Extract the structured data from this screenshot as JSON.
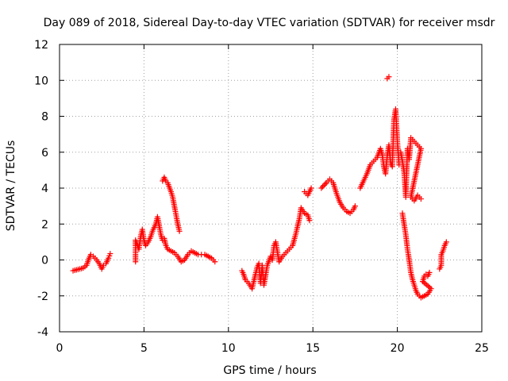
{
  "chart_data": {
    "type": "scatter",
    "title": "Day 089 of 2018, Sidereal Day-to-day VTEC variation (SDTVAR) for receiver msdr",
    "xlabel": "GPS time / hours",
    "ylabel": "SDTVAR / TECUs",
    "xlim": [
      0,
      25
    ],
    "ylim": [
      -4,
      12
    ],
    "xticks": [
      "0",
      "5",
      "10",
      "15",
      "20",
      "25"
    ],
    "yticks": [
      "-4",
      "-2",
      "0",
      "2",
      "4",
      "6",
      "8",
      "10",
      "12"
    ],
    "grid": true,
    "marker": "plus",
    "color": "#ff0000",
    "series": [
      {
        "name": "SDTVAR",
        "segments": [
          [
            [
              0.8,
              -0.6
            ],
            [
              1.0,
              -0.55
            ],
            [
              1.2,
              -0.5
            ],
            [
              1.4,
              -0.45
            ],
            [
              1.6,
              -0.3
            ],
            [
              1.75,
              0.1
            ],
            [
              1.85,
              0.3
            ],
            [
              2.0,
              0.2
            ],
            [
              2.2,
              0.0
            ],
            [
              2.35,
              -0.2
            ],
            [
              2.5,
              -0.5
            ],
            [
              2.6,
              -0.3
            ],
            [
              2.75,
              -0.2
            ],
            [
              2.9,
              0.1
            ],
            [
              3.0,
              0.35
            ]
          ],
          [
            [
              4.5,
              -0.1
            ],
            [
              4.5,
              0.1
            ],
            [
              4.5,
              1.1
            ],
            [
              4.7,
              0.6
            ],
            [
              4.8,
              1.3
            ],
            [
              4.9,
              1.7
            ],
            [
              5.0,
              1.1
            ],
            [
              5.1,
              0.8
            ],
            [
              5.25,
              1.0
            ],
            [
              5.4,
              1.3
            ],
            [
              5.5,
              1.6
            ],
            [
              5.6,
              1.8
            ],
            [
              5.7,
              2.0
            ],
            [
              5.8,
              2.4
            ],
            [
              5.9,
              1.9
            ],
            [
              6.0,
              1.4
            ],
            [
              6.1,
              1.1
            ],
            [
              6.2,
              1.2
            ],
            [
              6.3,
              0.8
            ],
            [
              6.4,
              0.6
            ],
            [
              6.6,
              0.5
            ],
            [
              6.8,
              0.4
            ],
            [
              7.0,
              0.2
            ],
            [
              7.2,
              -0.1
            ],
            [
              7.4,
              0.0
            ],
            [
              7.6,
              0.3
            ],
            [
              7.8,
              0.5
            ],
            [
              8.0,
              0.4
            ],
            [
              8.2,
              0.3
            ],
            [
              8.4,
              0.3
            ],
            [
              8.6,
              0.3
            ],
            [
              8.8,
              0.2
            ],
            [
              9.0,
              0.1
            ],
            [
              9.2,
              -0.1
            ]
          ],
          [
            [
              6.1,
              4.4
            ],
            [
              6.2,
              4.6
            ],
            [
              6.3,
              4.4
            ],
            [
              6.4,
              4.3
            ],
            [
              6.6,
              3.8
            ],
            [
              6.7,
              3.5
            ],
            [
              6.8,
              3.0
            ],
            [
              6.9,
              2.5
            ],
            [
              7.0,
              2.0
            ],
            [
              7.1,
              1.6
            ]
          ],
          [
            [
              10.8,
              -0.6
            ],
            [
              10.9,
              -0.8
            ],
            [
              11.0,
              -1.1
            ],
            [
              11.2,
              -1.3
            ],
            [
              11.4,
              -1.6
            ],
            [
              11.5,
              -1.2
            ],
            [
              11.7,
              -0.4
            ],
            [
              11.8,
              -0.2
            ],
            [
              11.9,
              -1.3
            ],
            [
              12.0,
              -0.3
            ],
            [
              12.1,
              -1.4
            ],
            [
              12.3,
              -0.3
            ],
            [
              12.5,
              0.2
            ],
            [
              12.6,
              0.0
            ],
            [
              12.7,
              0.8
            ],
            [
              12.8,
              1.0
            ],
            [
              13.0,
              -0.1
            ],
            [
              13.2,
              0.2
            ],
            [
              13.4,
              0.4
            ],
            [
              13.6,
              0.6
            ],
            [
              13.8,
              0.8
            ],
            [
              14.0,
              1.5
            ],
            [
              14.2,
              2.3
            ],
            [
              14.3,
              2.9
            ],
            [
              14.5,
              2.6
            ],
            [
              14.7,
              2.5
            ],
            [
              14.8,
              2.2
            ]
          ],
          [
            [
              14.5,
              3.8
            ],
            [
              14.7,
              3.6
            ],
            [
              14.9,
              4.0
            ]
          ],
          [
            [
              15.5,
              4.0
            ],
            [
              15.8,
              4.3
            ],
            [
              16.0,
              4.5
            ],
            [
              16.2,
              4.3
            ],
            [
              16.4,
              3.7
            ],
            [
              16.6,
              3.2
            ],
            [
              16.8,
              2.9
            ],
            [
              17.0,
              2.7
            ],
            [
              17.2,
              2.6
            ],
            [
              17.4,
              2.8
            ],
            [
              17.5,
              3.0
            ]
          ],
          [
            [
              17.8,
              4.0
            ],
            [
              18.0,
              4.4
            ],
            [
              18.2,
              4.8
            ],
            [
              18.4,
              5.3
            ],
            [
              18.6,
              5.5
            ],
            [
              18.8,
              5.7
            ],
            [
              19.0,
              6.2
            ],
            [
              19.1,
              5.9
            ],
            [
              19.2,
              5.2
            ],
            [
              19.3,
              4.8
            ],
            [
              19.4,
              5.8
            ],
            [
              19.5,
              6.4
            ],
            [
              19.6,
              5.4
            ],
            [
              19.7,
              5.2
            ],
            [
              19.8,
              7.8
            ],
            [
              19.9,
              8.4
            ],
            [
              20.0,
              6.6
            ],
            [
              20.1,
              5.3
            ]
          ],
          [
            [
              19.4,
              10.1
            ],
            [
              19.5,
              10.2
            ]
          ],
          [
            [
              20.2,
              6.0
            ],
            [
              20.3,
              5.5
            ],
            [
              20.4,
              4.9
            ],
            [
              20.5,
              3.5
            ],
            [
              20.6,
              6.2
            ],
            [
              20.7,
              5.6
            ],
            [
              20.8,
              6.8
            ],
            [
              21.0,
              6.6
            ],
            [
              21.2,
              6.4
            ],
            [
              21.4,
              6.2
            ],
            [
              20.8,
              3.5
            ],
            [
              21.0,
              3.3
            ],
            [
              21.2,
              3.6
            ],
            [
              21.4,
              3.4
            ]
          ],
          [
            [
              20.3,
              2.6
            ],
            [
              20.4,
              2.0
            ],
            [
              20.5,
              1.4
            ],
            [
              20.6,
              0.6
            ],
            [
              20.7,
              0.0
            ],
            [
              20.8,
              -0.7
            ],
            [
              20.9,
              -1.1
            ],
            [
              21.0,
              -1.4
            ],
            [
              21.1,
              -1.7
            ],
            [
              21.2,
              -1.9
            ],
            [
              21.3,
              -2.0
            ],
            [
              21.4,
              -2.1
            ],
            [
              21.6,
              -2.0
            ],
            [
              21.8,
              -1.9
            ],
            [
              22.0,
              -1.6
            ],
            [
              21.5,
              -1.2
            ],
            [
              21.6,
              -0.9
            ],
            [
              21.7,
              -0.8
            ],
            [
              21.8,
              -0.9
            ],
            [
              21.9,
              -0.7
            ]
          ],
          [
            [
              22.5,
              -0.5
            ],
            [
              22.6,
              -0.3
            ],
            [
              22.6,
              0.3
            ],
            [
              22.7,
              0.5
            ],
            [
              22.8,
              0.8
            ],
            [
              22.9,
              1.0
            ]
          ]
        ]
      }
    ]
  }
}
